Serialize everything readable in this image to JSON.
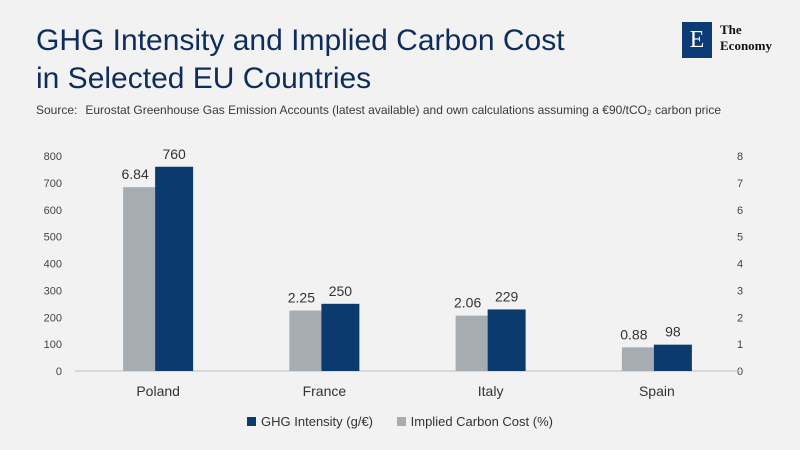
{
  "header": {
    "title_line1": "GHG Intensity and Implied Carbon Cost",
    "title_line2": "in Selected EU Countries",
    "source_label": "Source:",
    "source_text": "Eurostat Greenhouse Gas Emission Accounts (latest available) and own calculations assuming a €90/tCO₂ carbon price"
  },
  "logo": {
    "letter": "E",
    "line1": "The",
    "line2": "Economy"
  },
  "colors": {
    "background": "#f2f2f2",
    "ghg": "#0b3a6e",
    "carbon": "#a5acb2",
    "title": "#0d2d5c"
  },
  "chart_data": {
    "type": "bar",
    "categories": [
      "Poland",
      "France",
      "Italy",
      "Spain"
    ],
    "series": [
      {
        "name": "GHG Intensity (g/€)",
        "axis": "left",
        "values": [
          760,
          250,
          229,
          98
        ],
        "labels": [
          "760",
          "250",
          "229",
          "98"
        ]
      },
      {
        "name": "Implied Carbon Cost (%)",
        "axis": "right",
        "values": [
          6.84,
          2.25,
          2.06,
          0.88
        ],
        "labels": [
          "6.84",
          "2.25",
          "2.06",
          "0.88"
        ]
      }
    ],
    "y_left": {
      "min": 0,
      "max": 800,
      "ticks": [
        0,
        100,
        200,
        300,
        400,
        500,
        600,
        700,
        800
      ]
    },
    "y_right": {
      "min": 0,
      "max": 8,
      "ticks": [
        0,
        1,
        2,
        3,
        4,
        5,
        6,
        7,
        8
      ]
    },
    "legend_position": "bottom",
    "grid": false
  }
}
